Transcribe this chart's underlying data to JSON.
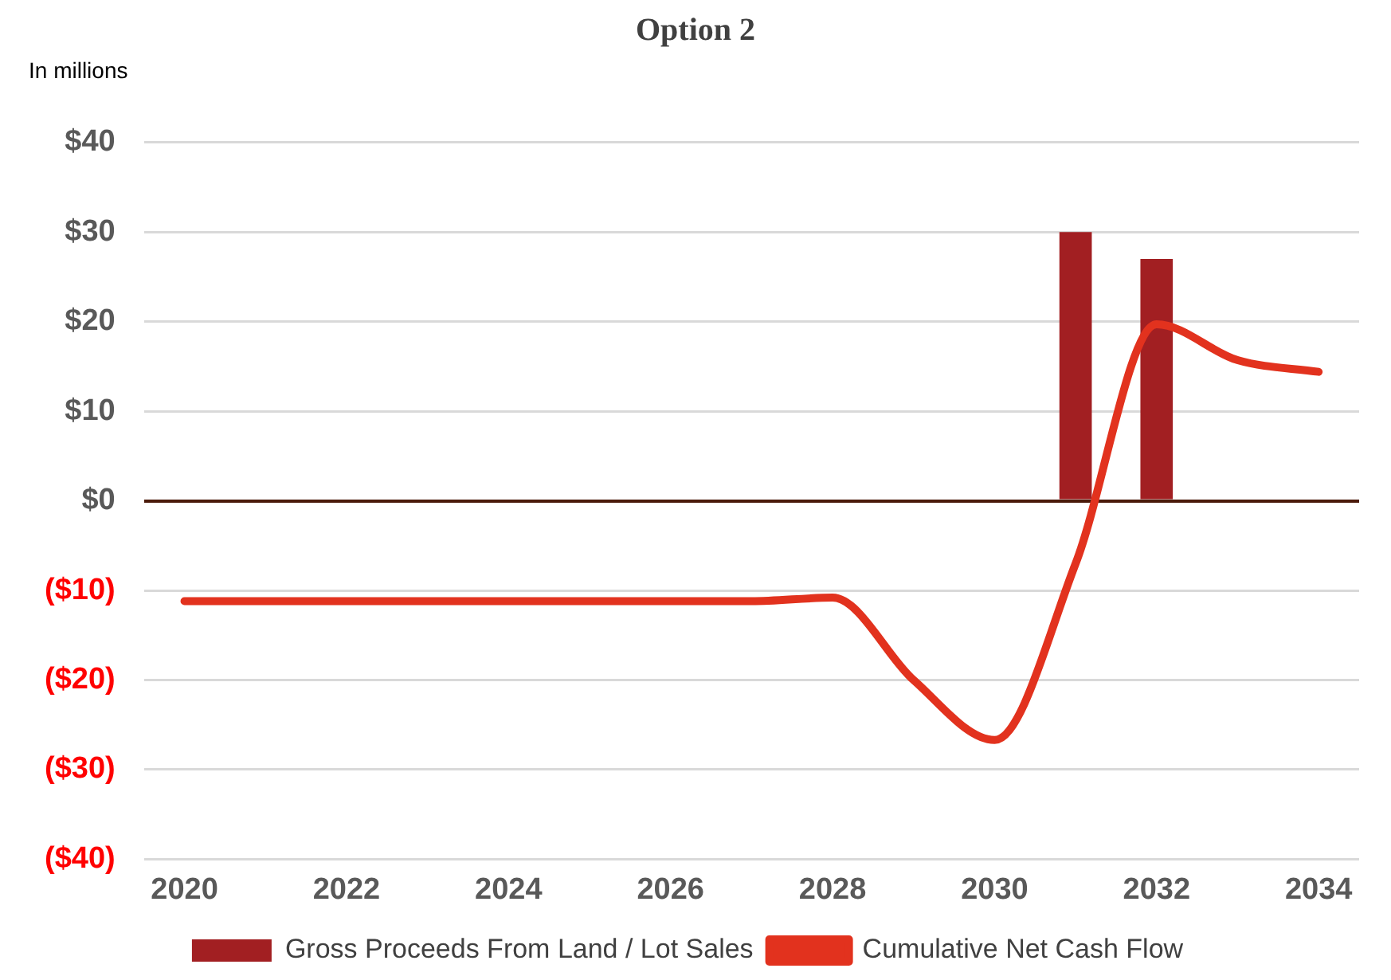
{
  "chart_data": {
    "type": "bar",
    "title": "Option 2",
    "ylabel": "In millions",
    "categories": [
      "2020",
      null,
      "2022",
      null,
      "2024",
      null,
      "2026",
      null,
      "2028",
      null,
      "2030",
      null,
      "2032",
      null,
      "2034"
    ],
    "series": [
      {
        "name": "Gross Proceeds From Land / Lot Sales",
        "color": "#a21f22",
        "values": [
          null,
          null,
          null,
          null,
          null,
          null,
          null,
          null,
          null,
          null,
          null,
          30,
          27,
          null,
          null
        ]
      },
      {
        "name": "Cumulative Net Cash Flow",
        "type": "line",
        "color": "#e2321e",
        "values": [
          -11.2,
          -11.2,
          -11.2,
          -11.2,
          -11.2,
          -11.2,
          -11.2,
          -11.2,
          -10.8,
          -20,
          -26.7,
          -7,
          19.7,
          15.7,
          14.4
        ]
      }
    ],
    "ylim": [
      -40,
      40
    ],
    "yticks": [
      {
        "value": -40,
        "label": "($40)"
      },
      {
        "value": -30,
        "label": "($30)"
      },
      {
        "value": -20,
        "label": "($20)"
      },
      {
        "value": -10,
        "label": "($10)"
      },
      {
        "value": 0,
        "label": "$0"
      },
      {
        "value": 10,
        "label": "$10"
      },
      {
        "value": 20,
        "label": "$20"
      },
      {
        "value": 30,
        "label": "$30"
      },
      {
        "value": 40,
        "label": "$40"
      }
    ],
    "grid": "y",
    "legend": "bottom",
    "marker": "none"
  }
}
